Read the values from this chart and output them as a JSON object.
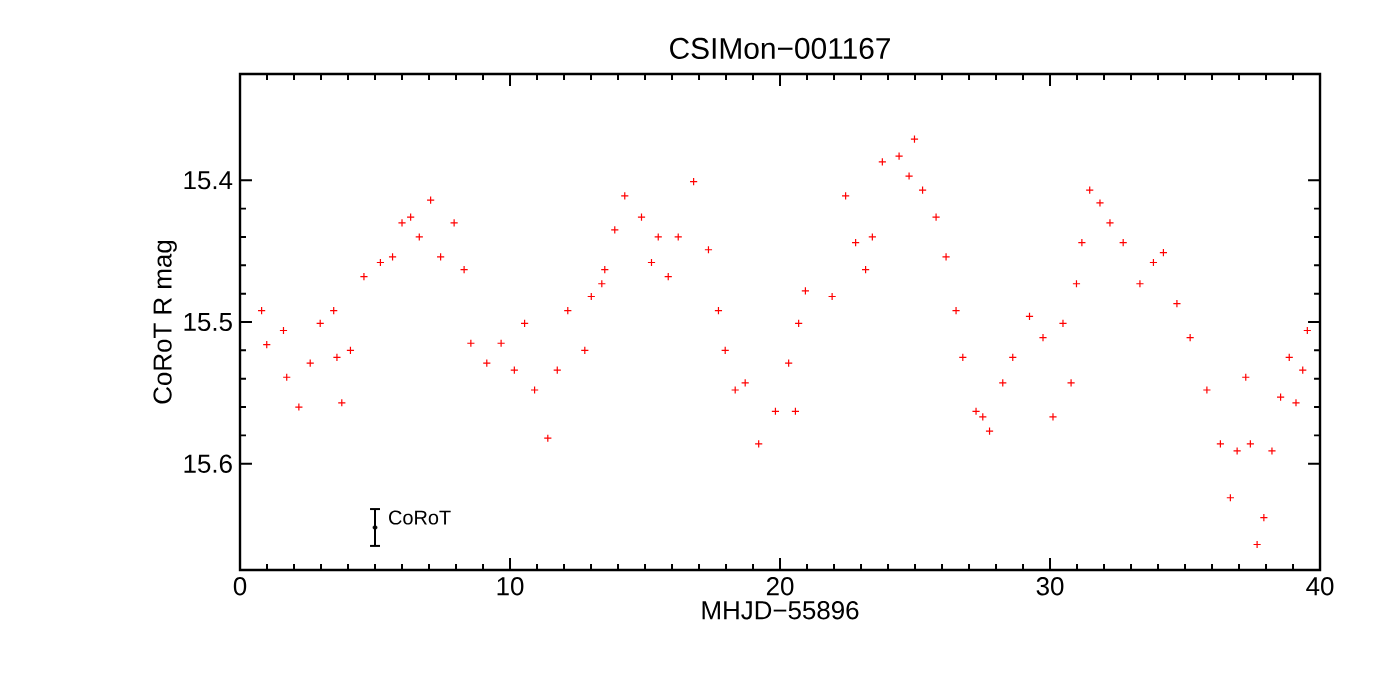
{
  "chart_data": {
    "type": "scatter",
    "title": "CSIMon−001167",
    "xlabel": "MHJD−55896",
    "ylabel": "CoRoT R mag",
    "xlim": [
      0,
      40
    ],
    "xticks": [
      0,
      10,
      20,
      30,
      40
    ],
    "ylim": [
      15.675,
      15.325
    ],
    "yticks": [
      15.4,
      15.5,
      15.6
    ],
    "marker": "cross",
    "series": [
      {
        "color": "#ff0000",
        "x": [
          0.8,
          0.99,
          1.61,
          1.73,
          2.18,
          2.6,
          2.97,
          3.47,
          3.59,
          3.77,
          4.09,
          4.59,
          5.2,
          5.65,
          6.0,
          6.32,
          6.64,
          7.06,
          7.43,
          7.93,
          8.3,
          8.55,
          9.14,
          9.67,
          10.16,
          10.54,
          10.91,
          11.4,
          11.75,
          12.14,
          12.77,
          13.01,
          13.4,
          13.51,
          13.88,
          14.25,
          14.87,
          15.24,
          15.49,
          15.86,
          16.23,
          16.8,
          17.35,
          17.72,
          17.97,
          18.34,
          18.71,
          19.21,
          19.83,
          20.32,
          20.57,
          20.69,
          20.94,
          21.93,
          22.43,
          22.8,
          23.17,
          23.42,
          23.79,
          24.41,
          24.78,
          24.98,
          25.28,
          25.78,
          26.15,
          26.52,
          26.77,
          27.26,
          27.51,
          27.76,
          28.25,
          28.62,
          29.24,
          29.74,
          30.11,
          30.48,
          30.78,
          30.98,
          31.18,
          31.47,
          31.85,
          32.22,
          32.71,
          33.33,
          33.83,
          34.2,
          34.7,
          35.19,
          35.81,
          36.31,
          36.68,
          36.93,
          37.25,
          37.42,
          37.67,
          37.92,
          38.22,
          38.54,
          38.86,
          39.11,
          39.36,
          39.53
        ],
        "values": [
          15.492,
          15.516,
          15.506,
          15.539,
          15.56,
          15.529,
          15.501,
          15.492,
          15.525,
          15.557,
          15.52,
          15.468,
          15.458,
          15.454,
          15.43,
          15.426,
          15.44,
          15.414,
          15.454,
          15.43,
          15.463,
          15.515,
          15.529,
          15.515,
          15.534,
          15.501,
          15.548,
          15.582,
          15.534,
          15.492,
          15.52,
          15.482,
          15.473,
          15.463,
          15.435,
          15.411,
          15.426,
          15.458,
          15.44,
          15.468,
          15.44,
          15.401,
          15.449,
          15.492,
          15.52,
          15.548,
          15.543,
          15.586,
          15.563,
          15.529,
          15.563,
          15.501,
          15.478,
          15.482,
          15.411,
          15.444,
          15.463,
          15.44,
          15.387,
          15.383,
          15.397,
          15.371,
          15.407,
          15.426,
          15.454,
          15.492,
          15.525,
          15.563,
          15.567,
          15.577,
          15.543,
          15.525,
          15.496,
          15.511,
          15.567,
          15.501,
          15.543,
          15.473,
          15.444,
          15.407,
          15.416,
          15.43,
          15.444,
          15.473,
          15.458,
          15.451,
          15.487,
          15.511,
          15.548,
          15.586,
          15.624,
          15.591,
          15.539,
          15.586,
          15.657,
          15.638,
          15.591,
          15.553,
          15.525,
          15.557,
          15.534,
          15.506
        ]
      },
      {
        "color": "#000000",
        "x": [
          5
        ],
        "values": [
          15.645
        ],
        "errors": [
          0.013
        ]
      }
    ],
    "annotations": [
      {
        "text": "CoRoT",
        "x": 5,
        "y": 15.645
      }
    ]
  }
}
